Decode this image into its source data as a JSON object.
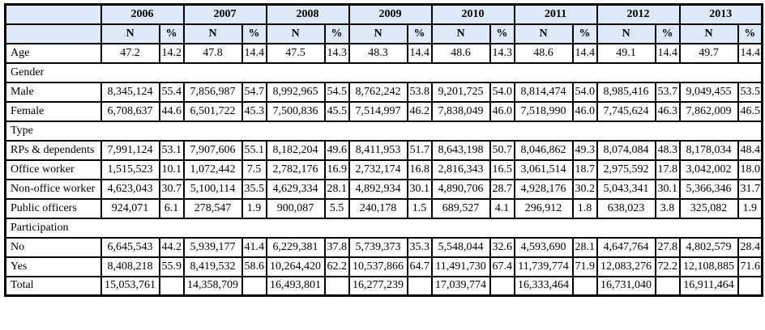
{
  "colors": {
    "header_bg": "#dbe9f8",
    "border": "#000000",
    "text": "#000000"
  },
  "table": {
    "corner_label": "",
    "years": [
      "2006",
      "2007",
      "2008",
      "2009",
      "2010",
      "2011",
      "2012",
      "2013"
    ],
    "subheaders": {
      "n": "N",
      "pct": "%"
    },
    "rows": [
      {
        "kind": "data",
        "label": "Age",
        "cells": [
          [
            "47.2",
            "14.2"
          ],
          [
            "47.8",
            "14.4"
          ],
          [
            "47.5",
            "14.3"
          ],
          [
            "48.3",
            "14.4"
          ],
          [
            "48.6",
            "14.3"
          ],
          [
            "48.6",
            "14.4"
          ],
          [
            "49.1",
            "14.4"
          ],
          [
            "49.7",
            "14.4"
          ]
        ]
      },
      {
        "kind": "section",
        "label": "Gender"
      },
      {
        "kind": "data",
        "label": "Male",
        "cells": [
          [
            "8,345,124",
            "55.4"
          ],
          [
            "7,856,987",
            "54.7"
          ],
          [
            "8,992,965",
            "54.5"
          ],
          [
            "8,762,242",
            "53.8"
          ],
          [
            "9,201,725",
            "54.0"
          ],
          [
            "8,814,474",
            "54.0"
          ],
          [
            "8,985,416",
            "53.7"
          ],
          [
            "9,049,455",
            "53.5"
          ]
        ]
      },
      {
        "kind": "data",
        "label": "Female",
        "cells": [
          [
            "6,708,637",
            "44.6"
          ],
          [
            "6,501,722",
            "45.3"
          ],
          [
            "7,500,836",
            "45.5"
          ],
          [
            "7,514,997",
            "46.2"
          ],
          [
            "7,838,049",
            "46.0"
          ],
          [
            "7,518,990",
            "46.0"
          ],
          [
            "7,745,624",
            "46.3"
          ],
          [
            "7,862,009",
            "46.5"
          ]
        ]
      },
      {
        "kind": "section",
        "label": "Type"
      },
      {
        "kind": "data",
        "label": "RPs & dependents",
        "cells": [
          [
            "7,991,124",
            "53.1"
          ],
          [
            "7,907,606",
            "55.1"
          ],
          [
            "8,182,204",
            "49.6"
          ],
          [
            "8,411,953",
            "51.7"
          ],
          [
            "8,643,198",
            "50.7"
          ],
          [
            "8,046,862",
            "49.3"
          ],
          [
            "8,074,084",
            "48.3"
          ],
          [
            "8,178,034",
            "48.4"
          ]
        ]
      },
      {
        "kind": "data",
        "label": "Office worker",
        "cells": [
          [
            "1,515,523",
            "10.1"
          ],
          [
            "1,072,442",
            "7.5"
          ],
          [
            "2,782,176",
            "16.9"
          ],
          [
            "2,732,174",
            "16.8"
          ],
          [
            "2,816,343",
            "16.5"
          ],
          [
            "3,061,514",
            "18.7"
          ],
          [
            "2,975,592",
            "17.8"
          ],
          [
            "3,042,002",
            "18.0"
          ]
        ]
      },
      {
        "kind": "data",
        "label": "Non-office worker",
        "cells": [
          [
            "4,623,043",
            "30.7"
          ],
          [
            "5,100,114",
            "35.5"
          ],
          [
            "4,629,334",
            "28.1"
          ],
          [
            "4,892,934",
            "30.1"
          ],
          [
            "4,890,706",
            "28.7"
          ],
          [
            "4,928,176",
            "30.2"
          ],
          [
            "5,043,341",
            "30.1"
          ],
          [
            "5,366,346",
            "31.7"
          ]
        ]
      },
      {
        "kind": "data",
        "label": "Public officers",
        "cells": [
          [
            "924,071",
            "6.1"
          ],
          [
            "278,547",
            "1.9"
          ],
          [
            "900,087",
            "5.5"
          ],
          [
            "240,178",
            "1.5"
          ],
          [
            "689,527",
            "4.1"
          ],
          [
            "296,912",
            "1.8"
          ],
          [
            "638,023",
            "3.8"
          ],
          [
            "325,082",
            "1.9"
          ]
        ]
      },
      {
        "kind": "section",
        "label": "Participation"
      },
      {
        "kind": "data",
        "label": "No",
        "cells": [
          [
            "6,645,543",
            "44.2"
          ],
          [
            "5,939,177",
            "41.4"
          ],
          [
            "6,229,381",
            "37.8"
          ],
          [
            "5,739,373",
            "35.3"
          ],
          [
            "5,548,044",
            "32.6"
          ],
          [
            "4,593,690",
            "28.1"
          ],
          [
            "4,647,764",
            "27.8"
          ],
          [
            "4,802,579",
            "28.4"
          ]
        ]
      },
      {
        "kind": "data",
        "label": "Yes",
        "cells": [
          [
            "8,408,218",
            "55.9"
          ],
          [
            "8,419,532",
            "58.6"
          ],
          [
            "10,264,420",
            "62.2"
          ],
          [
            "10,537,866",
            "64.7"
          ],
          [
            "11,491,730",
            "67.4"
          ],
          [
            "11,739,774",
            "71.9"
          ],
          [
            "12,083,276",
            "72.2"
          ],
          [
            "12,108,885",
            "71.6"
          ]
        ]
      },
      {
        "kind": "data",
        "label": "Total",
        "cells": [
          [
            "15,053,761",
            ""
          ],
          [
            "14,358,709",
            ""
          ],
          [
            "16,493,801",
            ""
          ],
          [
            "16,277,239",
            ""
          ],
          [
            "17,039,774",
            ""
          ],
          [
            "16,333,464",
            ""
          ],
          [
            "16,731,040",
            ""
          ],
          [
            "16,911,464",
            ""
          ]
        ]
      }
    ]
  }
}
